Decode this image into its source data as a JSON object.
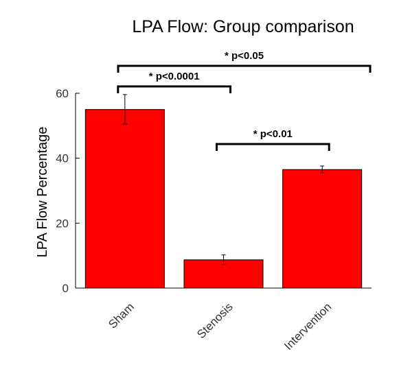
{
  "chart_data": {
    "type": "bar",
    "title": "LPA Flow: Group comparison",
    "xlabel": "",
    "ylabel": "LPA Flow Percentage",
    "categories": [
      "Sham",
      "Stenosis",
      "Intervention"
    ],
    "values": [
      55.0,
      8.7,
      36.5
    ],
    "error_bars": [
      {
        "low": 50.5,
        "high": 59.6
      },
      {
        "low": 7.3,
        "high": 10.2
      },
      {
        "low": 35.5,
        "high": 37.6
      }
    ],
    "ylim": [
      0,
      60
    ],
    "yticks": [
      "0",
      "20",
      "40",
      "60"
    ],
    "bar_color": "#ff0000",
    "grid": false,
    "legend": "none",
    "significance": [
      {
        "label": "* p<0.0001",
        "from": "Sham",
        "to": "Stenosis"
      },
      {
        "label": "* p<0.01",
        "from": "Stenosis",
        "to": "Intervention"
      },
      {
        "label": "* p<0.05",
        "from": "Sham",
        "to": "Intervention"
      }
    ]
  }
}
